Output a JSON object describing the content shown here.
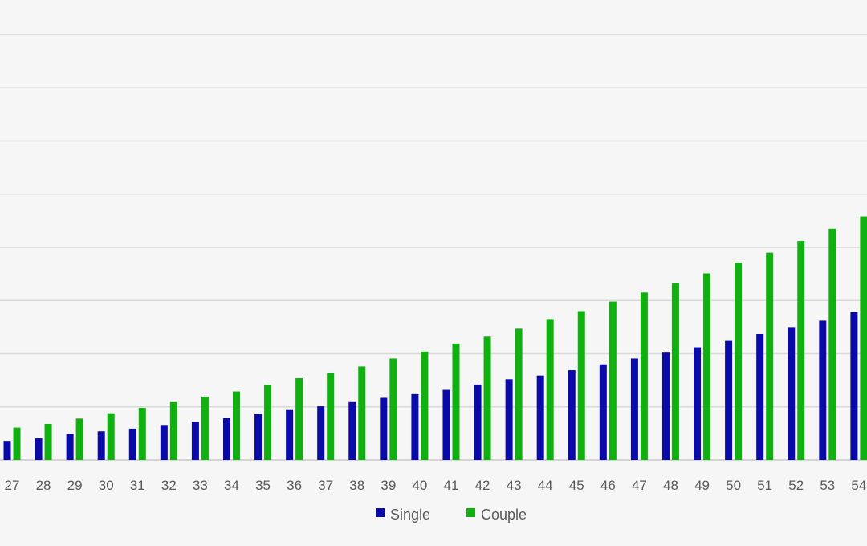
{
  "chart_data": {
    "type": "bar",
    "title": "",
    "xlabel": "",
    "ylabel": "",
    "categories": [
      "27",
      "28",
      "29",
      "30",
      "31",
      "32",
      "33",
      "34",
      "35",
      "36",
      "37",
      "38",
      "39",
      "40",
      "41",
      "42",
      "43",
      "44",
      "45",
      "46",
      "47",
      "48",
      "49",
      "50",
      "51",
      "52",
      "53",
      "54"
    ],
    "series": [
      {
        "name": "Single",
        "color": "#0a0aa8",
        "values": [
          0.36,
          0.41,
          0.49,
          0.54,
          0.59,
          0.66,
          0.72,
          0.79,
          0.87,
          0.94,
          1.01,
          1.09,
          1.17,
          1.24,
          1.32,
          1.42,
          1.52,
          1.59,
          1.69,
          1.8,
          1.91,
          2.02,
          2.12,
          2.24,
          2.37,
          2.5,
          2.62,
          2.78
        ]
      },
      {
        "name": "Couple",
        "color": "#11b011",
        "values": [
          0.61,
          0.68,
          0.78,
          0.88,
          0.98,
          1.09,
          1.19,
          1.29,
          1.41,
          1.54,
          1.64,
          1.76,
          1.91,
          2.04,
          2.19,
          2.32,
          2.47,
          2.65,
          2.8,
          2.98,
          3.15,
          3.33,
          3.51,
          3.71,
          3.9,
          4.12,
          4.35,
          4.58
        ]
      }
    ],
    "ylim": [
      0,
      8
    ],
    "grid": true,
    "legend_position": "bottom-center"
  }
}
